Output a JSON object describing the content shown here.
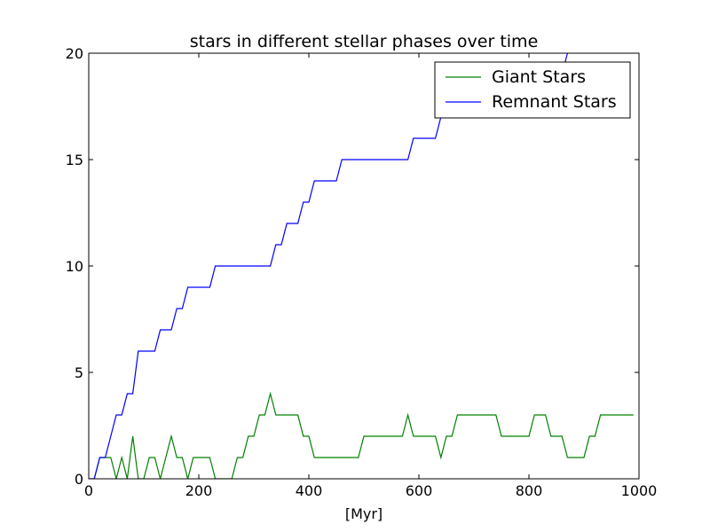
{
  "chart_data": {
    "type": "line",
    "title": "stars in different stellar phases over time",
    "xlabel": "[Myr]",
    "ylabel": "",
    "xlim": [
      0,
      1000
    ],
    "ylim": [
      0,
      20
    ],
    "xticks": [
      "0",
      "200",
      "400",
      "600",
      "800",
      "1000"
    ],
    "yticks": [
      "0",
      "5",
      "10",
      "15",
      "20"
    ],
    "grid": false,
    "legend_position": "top-right",
    "series": [
      {
        "name": "Giant Stars",
        "color": "#008000",
        "x": [
          0,
          10,
          20,
          30,
          40,
          50,
          60,
          70,
          80,
          90,
          100,
          110,
          120,
          130,
          140,
          150,
          160,
          170,
          180,
          190,
          200,
          210,
          220,
          230,
          240,
          250,
          260,
          270,
          280,
          290,
          300,
          310,
          320,
          330,
          340,
          350,
          360,
          370,
          380,
          390,
          400,
          410,
          420,
          430,
          440,
          450,
          460,
          470,
          480,
          490,
          500,
          510,
          520,
          530,
          540,
          550,
          560,
          570,
          580,
          590,
          600,
          610,
          620,
          630,
          640,
          650,
          660,
          670,
          680,
          690,
          700,
          710,
          720,
          730,
          740,
          750,
          760,
          770,
          780,
          790,
          800,
          810,
          820,
          830,
          840,
          850,
          860,
          870,
          880,
          890,
          900,
          910,
          920,
          930,
          940,
          950,
          960,
          970,
          980,
          990
        ],
        "y": [
          0,
          0,
          1,
          1,
          1,
          0,
          1,
          0,
          2,
          0,
          0,
          1,
          1,
          0,
          1,
          2,
          1,
          1,
          0,
          1,
          1,
          1,
          1,
          0,
          0,
          0,
          0,
          1,
          1,
          2,
          2,
          3,
          3,
          4,
          3,
          3,
          3,
          3,
          3,
          2,
          2,
          1,
          1,
          1,
          1,
          1,
          1,
          1,
          1,
          1,
          2,
          2,
          2,
          2,
          2,
          2,
          2,
          2,
          3,
          2,
          2,
          2,
          2,
          2,
          1,
          2,
          2,
          3,
          3,
          3,
          3,
          3,
          3,
          3,
          3,
          2,
          2,
          2,
          2,
          2,
          2,
          3,
          3,
          3,
          2,
          2,
          2,
          1,
          1,
          1,
          1,
          2,
          2,
          3,
          3,
          3,
          3,
          3,
          3,
          3
        ]
      },
      {
        "name": "Remnant Stars",
        "color": "#0000ff",
        "x": [
          0,
          10,
          20,
          30,
          40,
          50,
          60,
          70,
          80,
          90,
          100,
          110,
          120,
          130,
          140,
          150,
          160,
          170,
          180,
          190,
          200,
          210,
          220,
          230,
          240,
          250,
          260,
          270,
          280,
          290,
          300,
          310,
          320,
          330,
          340,
          350,
          360,
          370,
          380,
          390,
          400,
          410,
          420,
          430,
          440,
          450,
          460,
          470,
          480,
          490,
          500,
          510,
          520,
          530,
          540,
          550,
          560,
          570,
          580,
          590,
          600,
          610,
          620,
          630,
          640,
          650,
          660,
          670,
          680,
          690,
          700,
          710,
          720,
          730,
          740,
          750,
          760,
          770,
          780,
          790,
          800,
          810,
          820,
          830,
          840,
          850,
          860,
          870
        ],
        "y": [
          0,
          0,
          1,
          1,
          2,
          3,
          3,
          4,
          4,
          6,
          6,
          6,
          6,
          7,
          7,
          7,
          8,
          8,
          9,
          9,
          9,
          9,
          9,
          10,
          10,
          10,
          10,
          10,
          10,
          10,
          10,
          10,
          10,
          10,
          11,
          11,
          12,
          12,
          12,
          13,
          13,
          14,
          14,
          14,
          14,
          14,
          15,
          15,
          15,
          15,
          15,
          15,
          15,
          15,
          15,
          15,
          15,
          15,
          15,
          16,
          16,
          16,
          16,
          16,
          17,
          17,
          17,
          17,
          17,
          17,
          17,
          17,
          17,
          17,
          17,
          17,
          17,
          17,
          17,
          18,
          18,
          18,
          18,
          18,
          18,
          19,
          19,
          20
        ]
      }
    ]
  }
}
